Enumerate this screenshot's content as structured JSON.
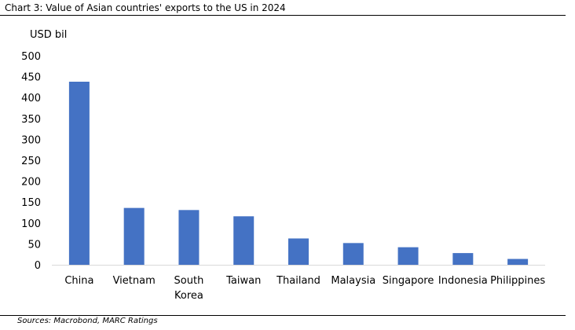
{
  "title": "Chart 3: Value of Asian countries' exports to the US in 2024",
  "source": "Sources: Macrobond, MARC Ratings",
  "chart_data": {
    "type": "bar",
    "ylabel": "USD bil",
    "xlabel": "",
    "ylim": [
      0,
      500
    ],
    "yticks": [
      0,
      50,
      100,
      150,
      200,
      250,
      300,
      350,
      400,
      450,
      500
    ],
    "grid": false,
    "legend": "none",
    "bar_color": "#4472C4",
    "categories": [
      [
        "China"
      ],
      [
        "Vietnam"
      ],
      [
        "South",
        "Korea"
      ],
      [
        "Taiwan"
      ],
      [
        "Thailand"
      ],
      [
        "Malaysia"
      ],
      [
        "Singapore"
      ],
      [
        "Indonesia"
      ],
      [
        "Philippines"
      ]
    ],
    "values": [
      438,
      136,
      131,
      116,
      63,
      52,
      42,
      28,
      14
    ]
  }
}
